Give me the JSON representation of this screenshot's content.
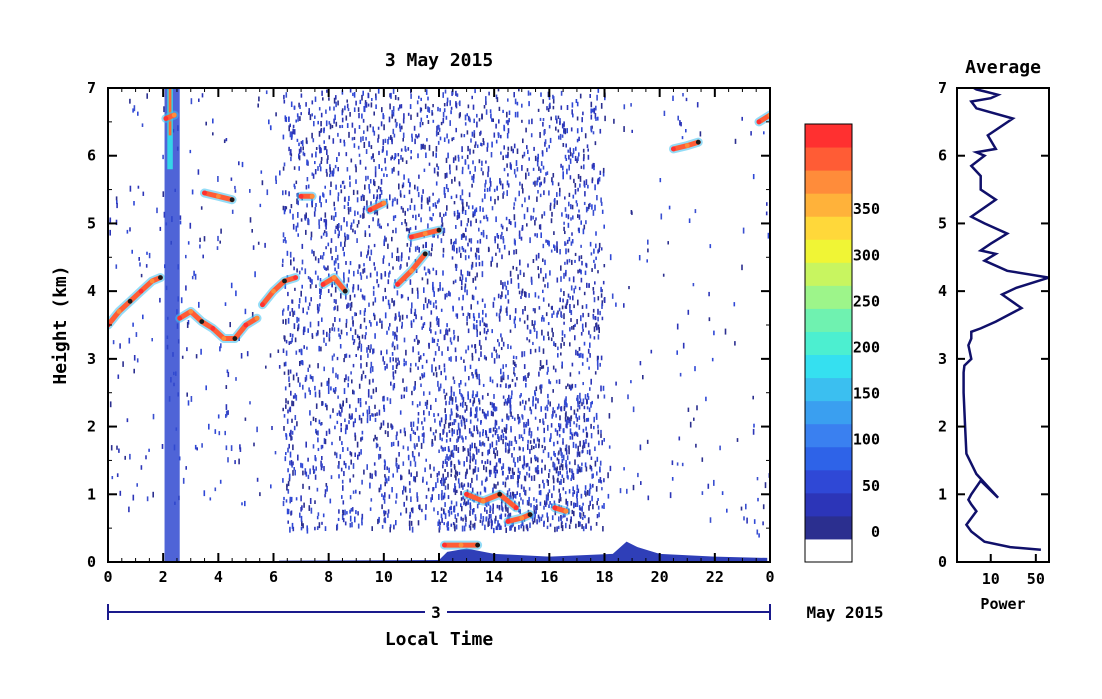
{
  "chart_data": [
    {
      "type": "heatmap",
      "title": "3 May 2015",
      "ylabel": "Height (km)",
      "xlabel": "Local Time",
      "x_ticks": [
        "0",
        "2",
        "4",
        "6",
        "8",
        "10",
        "12",
        "14",
        "16",
        "18",
        "20",
        "22",
        "0"
      ],
      "y_ticks": [
        "0",
        "1",
        "2",
        "3",
        "4",
        "5",
        "6",
        "7"
      ],
      "xlim": [
        0,
        24
      ],
      "ylim": [
        0,
        7
      ],
      "date_bar": {
        "day": "3",
        "month_year": "May 2015"
      },
      "colorbar": {
        "ticks": [
          "0",
          "50",
          "100",
          "150",
          "200",
          "250",
          "300",
          "350"
        ],
        "colors": [
          "#ffffff",
          "#2b2f8f",
          "#2c35b8",
          "#2f48d6",
          "#2e63e8",
          "#3a80f0",
          "#3a9ff0",
          "#3bbff0",
          "#35e0f0",
          "#4cefd0",
          "#6ff2b0",
          "#9df58a",
          "#c8f560",
          "#f0f535",
          "#ffd83a",
          "#ffb23a",
          "#ff8c3a",
          "#ff5c35",
          "#ff3030"
        ]
      },
      "layers": [
        {
          "time": [
            0,
            0.4,
            0.8,
            1.2,
            1.6,
            1.9
          ],
          "height": [
            3.5,
            3.7,
            3.85,
            4.0,
            4.15,
            4.2
          ]
        },
        {
          "time": [
            2.6,
            3.0,
            3.4,
            3.8,
            4.2,
            4.6,
            5.0,
            5.4
          ],
          "height": [
            3.6,
            3.7,
            3.55,
            3.45,
            3.3,
            3.3,
            3.5,
            3.6
          ]
        },
        {
          "time": [
            5.6,
            6.0,
            6.4,
            6.8
          ],
          "height": [
            3.8,
            4.0,
            4.15,
            4.2
          ]
        },
        {
          "time": [
            7.8,
            8.2,
            8.6
          ],
          "height": [
            4.1,
            4.2,
            4.0
          ]
        },
        {
          "time": [
            10.5,
            11.0,
            11.5
          ],
          "height": [
            4.1,
            4.3,
            4.55
          ]
        },
        {
          "time": [
            3.5,
            4.0,
            4.5
          ],
          "height": [
            5.45,
            5.4,
            5.35
          ]
        },
        {
          "time": [
            7.0,
            7.4
          ],
          "height": [
            5.4,
            5.4
          ]
        },
        {
          "time": [
            9.5,
            10.0
          ],
          "height": [
            5.2,
            5.3
          ]
        },
        {
          "time": [
            11.0,
            11.5,
            12.0
          ],
          "height": [
            4.8,
            4.85,
            4.9
          ]
        },
        {
          "time": [
            2.1,
            2.4
          ],
          "height": [
            6.55,
            6.6
          ]
        },
        {
          "time": [
            20.5,
            21.0,
            21.4
          ],
          "height": [
            6.1,
            6.15,
            6.2
          ]
        },
        {
          "time": [
            23.6,
            24.0
          ],
          "height": [
            6.5,
            6.6
          ]
        },
        {
          "time": [
            12.2,
            12.8,
            13.4
          ],
          "height": [
            0.25,
            0.25,
            0.25
          ]
        },
        {
          "time": [
            13.0,
            13.6,
            14.2,
            14.8
          ],
          "height": [
            1.0,
            0.9,
            1.0,
            0.8
          ]
        },
        {
          "time": [
            14.5,
            15.0,
            15.3
          ],
          "height": [
            0.6,
            0.65,
            0.7
          ]
        },
        {
          "time": [
            16.2,
            16.6
          ],
          "height": [
            0.8,
            0.75
          ]
        }
      ]
    },
    {
      "type": "line",
      "title": "Average",
      "xlabel": "Power",
      "x_ticks": [
        "10",
        "50"
      ],
      "y_ticks": [
        "0",
        "1",
        "2",
        "3",
        "4",
        "5",
        "6",
        "7"
      ],
      "ylim": [
        0,
        7
      ],
      "xscale": "log",
      "xlim": [
        3,
        80
      ],
      "series": [
        {
          "x": [
            60,
            20,
            8,
            5,
            4.2,
            6,
            5,
            4.5,
            5,
            7,
            13,
            6,
            4.2,
            4.0,
            3.8,
            3.8,
            3.9,
            5,
            4.5,
            5,
            5,
            7,
            12,
            30,
            15,
            25,
            80,
            18,
            8,
            12,
            7,
            10,
            18,
            8,
            5,
            12,
            7,
            7,
            5,
            8,
            6,
            12,
            9,
            22,
            6,
            5,
            10,
            13,
            8,
            6,
            5.5
          ],
          "y": [
            0.18,
            0.22,
            0.3,
            0.45,
            0.55,
            0.75,
            0.85,
            0.92,
            1.0,
            1.2,
            0.95,
            1.3,
            1.6,
            2.0,
            2.5,
            2.8,
            2.9,
            3.0,
            3.2,
            3.3,
            3.4,
            3.45,
            3.55,
            3.75,
            3.95,
            4.05,
            4.2,
            4.3,
            4.45,
            4.55,
            4.6,
            4.7,
            4.85,
            5.0,
            5.1,
            5.35,
            5.5,
            5.7,
            5.85,
            6.0,
            6.05,
            6.1,
            6.3,
            6.55,
            6.7,
            6.8,
            6.85,
            6.9,
            6.95,
            6.98,
            7.0
          ]
        }
      ]
    }
  ]
}
